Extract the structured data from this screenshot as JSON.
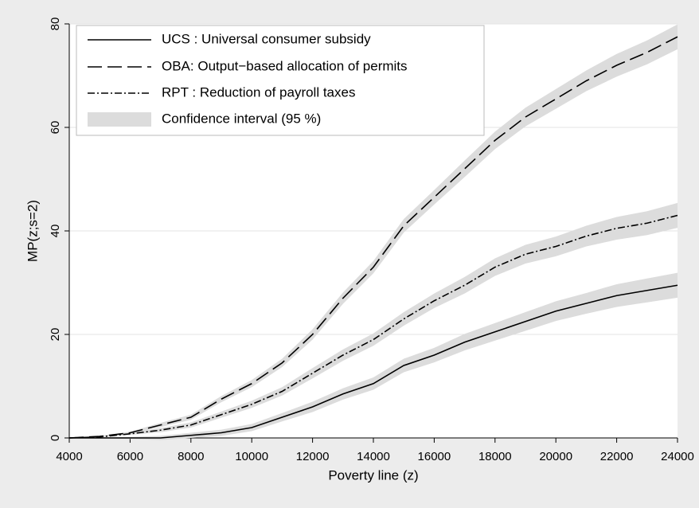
{
  "chart_data": {
    "type": "line",
    "xlabel": "Poverty line (z)",
    "ylabel": "MP(z;s=2)",
    "x": [
      4000,
      5000,
      6000,
      7000,
      8000,
      9000,
      10000,
      11000,
      12000,
      13000,
      14000,
      15000,
      16000,
      17000,
      18000,
      19000,
      20000,
      21000,
      22000,
      23000,
      24000
    ],
    "xlim": [
      4000,
      24000
    ],
    "xticks": [
      4000,
      6000,
      8000,
      10000,
      12000,
      14000,
      16000,
      18000,
      20000,
      22000,
      24000
    ],
    "ylim": [
      0,
      80
    ],
    "yticks": [
      0,
      20,
      40,
      60,
      80
    ],
    "grid": true,
    "legend": "top-left",
    "band_name": "Confidence interval (95 %)",
    "band_color": "#dcdcdc",
    "series": [
      {
        "name": "UCS : Universal consumer subsidy",
        "color": "#000000",
        "dash": "solid",
        "values": [
          0,
          0,
          0,
          0,
          0.5,
          1,
          2,
          4,
          6,
          8.5,
          10.5,
          14,
          16,
          18.5,
          20.5,
          22.5,
          24.5,
          26,
          27.5,
          28.5,
          29.5
        ],
        "lower": [
          0,
          -0.1,
          -0.2,
          -0.4,
          0,
          0.4,
          1.3,
          3.2,
          5,
          7.4,
          9.3,
          12.7,
          14.6,
          16.9,
          18.8,
          20.7,
          22.6,
          24,
          25.3,
          26.2,
          27.1
        ],
        "upper": [
          0,
          0.1,
          0.2,
          0.4,
          1,
          1.6,
          2.7,
          4.8,
          7,
          9.6,
          11.7,
          15.3,
          17.4,
          20.1,
          22.2,
          24.3,
          26.4,
          28,
          29.7,
          30.8,
          31.9
        ]
      },
      {
        "name": "OBA: Output−based allocation of permits",
        "color": "#000000",
        "dash": "longdash",
        "values": [
          0,
          0.3,
          1,
          2.5,
          4,
          7.5,
          10.5,
          14.5,
          20,
          27,
          33,
          41,
          46.5,
          52,
          57.5,
          62,
          65.5,
          69,
          72,
          74.5,
          77.5
        ],
        "lower": [
          0,
          0.2,
          0.8,
          2.1,
          3.5,
          6.9,
          9.8,
          13.7,
          19,
          25.9,
          31.8,
          39.7,
          45.1,
          50.4,
          55.8,
          60.2,
          63.6,
          67,
          69.8,
          72.2,
          75.1
        ],
        "upper": [
          0,
          0.4,
          1.2,
          2.9,
          4.5,
          8.1,
          11.2,
          15.3,
          21,
          28.1,
          34.2,
          42.3,
          47.9,
          53.6,
          59.2,
          63.8,
          67.4,
          71,
          74.2,
          76.8,
          79.9
        ]
      },
      {
        "name": "RPT : Reduction of payroll taxes",
        "color": "#000000",
        "dash": "dashdot",
        "values": [
          0,
          0.2,
          0.8,
          1.5,
          2.5,
          4.5,
          6.5,
          9,
          12.5,
          16,
          19,
          23,
          26.5,
          29.5,
          33,
          35.5,
          37,
          39,
          40.5,
          41.5,
          43
        ],
        "lower": [
          0,
          0.1,
          0.6,
          1.1,
          2,
          3.9,
          5.8,
          8.2,
          11.5,
          14.9,
          17.8,
          21.7,
          25.1,
          27.9,
          31.3,
          33.7,
          35.1,
          37,
          38.3,
          39.2,
          40.6
        ],
        "upper": [
          0,
          0.3,
          1,
          1.9,
          3,
          5.1,
          7.2,
          9.8,
          13.5,
          17.1,
          20.2,
          24.3,
          27.9,
          31.1,
          34.7,
          37.3,
          38.9,
          41,
          42.7,
          43.8,
          45.4
        ]
      }
    ]
  }
}
